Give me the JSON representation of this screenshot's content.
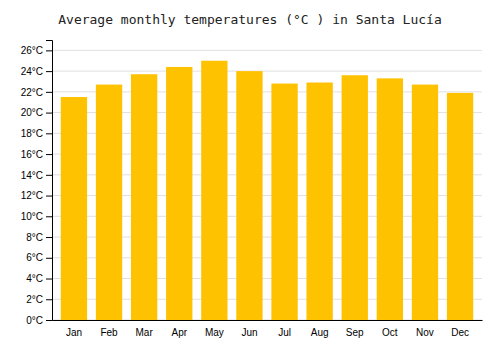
{
  "chart_data": {
    "type": "bar",
    "title": "Average monthly temperatures (°C ) in Santa Lucía",
    "categories": [
      "Jan",
      "Feb",
      "Mar",
      "Apr",
      "May",
      "Jun",
      "Jul",
      "Aug",
      "Sep",
      "Oct",
      "Nov",
      "Dec"
    ],
    "values": [
      21.5,
      22.7,
      23.7,
      24.4,
      25.0,
      24.0,
      22.8,
      22.9,
      23.6,
      23.3,
      22.7,
      21.9
    ],
    "color": "#FFC200",
    "ylim": [
      0,
      27
    ],
    "yticks": [
      {
        "value": 0,
        "label": "0°C"
      },
      {
        "value": 2,
        "label": "2°C"
      },
      {
        "value": 4,
        "label": "4°C"
      },
      {
        "value": 6,
        "label": "6°C"
      },
      {
        "value": 8,
        "label": "8°C"
      },
      {
        "value": 10,
        "label": "10°C"
      },
      {
        "value": 12,
        "label": "12°C"
      },
      {
        "value": 14,
        "label": "14°C"
      },
      {
        "value": 16,
        "label": "16°C"
      },
      {
        "value": 18,
        "label": "18°C"
      },
      {
        "value": 20,
        "label": "20°C"
      },
      {
        "value": 22,
        "label": "22°C"
      },
      {
        "value": 24,
        "label": "24°C"
      },
      {
        "value": 26,
        "label": "26°C"
      }
    ],
    "grid": true
  }
}
